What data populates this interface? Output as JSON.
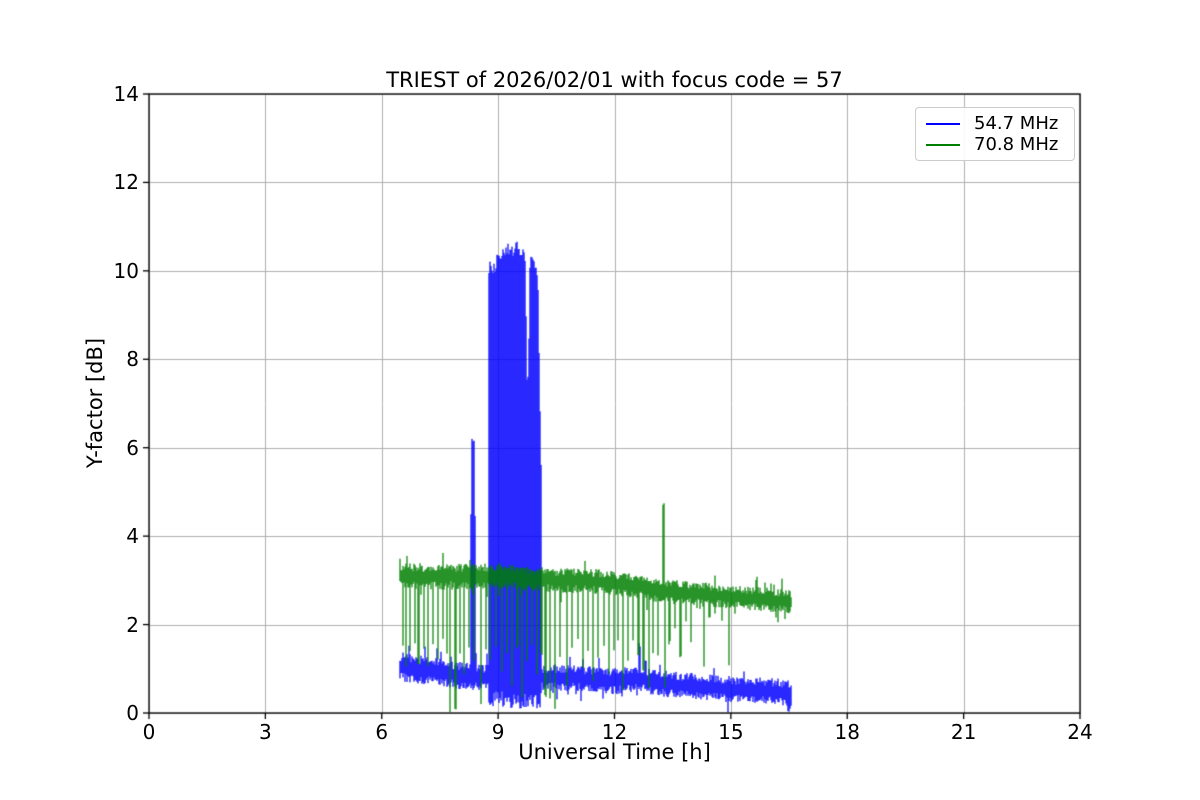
{
  "chart_data": {
    "type": "line",
    "title": "TRIEST of 2026/02/01 with focus code = 57",
    "xlabel": "Universal Time [h]",
    "ylabel": "Y-factor [dB]",
    "xlim": [
      0,
      24
    ],
    "ylim": [
      0,
      14
    ],
    "xticks": [
      0,
      3,
      6,
      9,
      12,
      15,
      18,
      21,
      24
    ],
    "yticks": [
      0,
      2,
      4,
      6,
      8,
      10,
      12,
      14
    ],
    "grid": true,
    "grid_color": "#b0b0b0",
    "axis_color": "#000000",
    "background_color": "#ffffff",
    "legend": {
      "position": "top-right",
      "entries": [
        {
          "label": "54.7 MHz",
          "color": "#0000ff"
        },
        {
          "label": "70.8 MHz",
          "color": "#008000"
        }
      ]
    },
    "time_range": [
      6.47,
      16.57
    ],
    "spike_halfwidth": 0.016,
    "series": [
      {
        "name": "54.7 MHz",
        "color": "#0000ff",
        "baseline": [
          [
            6.47,
            1.05
          ],
          [
            7.0,
            0.98
          ],
          [
            7.6,
            0.9
          ],
          [
            8.3,
            0.82
          ],
          [
            8.74,
            0.8
          ],
          [
            10.12,
            0.8
          ],
          [
            10.85,
            0.8
          ],
          [
            11.5,
            0.75
          ],
          [
            12.0,
            0.72
          ],
          [
            12.65,
            0.78
          ],
          [
            13.0,
            0.68
          ],
          [
            13.8,
            0.62
          ],
          [
            14.5,
            0.58
          ],
          [
            15.2,
            0.52
          ],
          [
            16.0,
            0.5
          ],
          [
            16.57,
            0.45
          ]
        ],
        "noise_amp": [
          [
            6.47,
            0.33
          ],
          [
            8.74,
            0.3
          ],
          [
            10.12,
            0.3
          ],
          [
            16.57,
            0.3
          ]
        ],
        "spikes_up": [
          [
            8.35,
            6.2,
            0.03
          ],
          [
            8.35,
            4.5,
            0.06
          ],
          [
            10.85,
            1.35,
            0.02
          ],
          [
            11.6,
            1.3,
            0.02
          ],
          [
            12.65,
            1.6,
            0.02
          ]
        ],
        "spikes_down": [
          [
            16.5,
            0.03,
            0.03
          ]
        ],
        "burst": {
          "start": 8.74,
          "end": 10.12,
          "bottom": 0.28,
          "top_envelope": [
            [
              8.74,
              10.0
            ],
            [
              8.8,
              10.15
            ],
            [
              8.9,
              10.05
            ],
            [
              9.0,
              10.3
            ],
            [
              9.1,
              10.4
            ],
            [
              9.22,
              10.5
            ],
            [
              9.35,
              10.45
            ],
            [
              9.5,
              10.55
            ],
            [
              9.6,
              10.45
            ],
            [
              9.7,
              10.3
            ],
            [
              9.74,
              7.6
            ],
            [
              9.78,
              7.5
            ],
            [
              9.82,
              10.2
            ],
            [
              9.9,
              10.35
            ],
            [
              9.97,
              10.1
            ],
            [
              10.02,
              9.9
            ],
            [
              10.07,
              7.3
            ],
            [
              10.12,
              4.8
            ]
          ]
        }
      },
      {
        "name": "70.8 MHz",
        "color": "#008000",
        "baseline": [
          [
            6.47,
            3.1
          ],
          [
            7.5,
            3.08
          ],
          [
            9.0,
            3.1
          ],
          [
            9.6,
            3.05
          ],
          [
            10.5,
            3.0
          ],
          [
            11.5,
            2.98
          ],
          [
            12.0,
            2.93
          ],
          [
            12.6,
            2.86
          ],
          [
            13.2,
            2.76
          ],
          [
            14.0,
            2.7
          ],
          [
            15.0,
            2.63
          ],
          [
            16.0,
            2.56
          ],
          [
            16.56,
            2.5
          ]
        ],
        "noise_amp": [
          [
            6.47,
            0.3
          ],
          [
            10.0,
            0.28
          ],
          [
            16.56,
            0.27
          ]
        ],
        "spikes_up": [
          [
            13.26,
            4.78,
            0.018
          ]
        ],
        "spikes_down": [
          [
            6.55,
            1.5
          ],
          [
            6.63,
            1.0
          ],
          [
            6.72,
            1.35
          ],
          [
            6.85,
            1.5
          ],
          [
            6.95,
            1.1
          ],
          [
            7.08,
            1.45
          ],
          [
            7.2,
            1.0
          ],
          [
            7.32,
            1.5
          ],
          [
            7.45,
            1.2
          ],
          [
            7.58,
            1.6
          ],
          [
            7.68,
            1.3
          ],
          [
            7.76,
            0.02
          ],
          [
            7.9,
            0.05
          ],
          [
            8.02,
            1.3
          ],
          [
            8.12,
            0.8
          ],
          [
            8.25,
            1.45
          ],
          [
            8.38,
            1.1
          ],
          [
            8.55,
            0.15
          ],
          [
            8.68,
            1.4
          ],
          [
            8.8,
            1.2
          ],
          [
            8.95,
            1.5
          ],
          [
            9.1,
            0.9
          ],
          [
            9.22,
            1.3
          ],
          [
            9.35,
            0.6
          ],
          [
            9.5,
            1.45
          ],
          [
            9.62,
            0.35
          ],
          [
            9.75,
            1.1
          ],
          [
            9.88,
            1.5
          ],
          [
            10.0,
            0.8
          ],
          [
            10.12,
            1.3
          ],
          [
            10.22,
            0.35
          ],
          [
            10.33,
            0.3
          ],
          [
            10.46,
            0.05
          ],
          [
            10.6,
            1.2
          ],
          [
            10.77,
            0.6
          ],
          [
            10.9,
            1.45
          ],
          [
            11.05,
            1.6
          ],
          [
            11.18,
            0.95
          ],
          [
            11.32,
            1.4
          ],
          [
            11.45,
            0.65
          ],
          [
            11.58,
            1.25
          ],
          [
            11.72,
            1.5
          ],
          [
            11.85,
            0.85
          ],
          [
            11.98,
            1.4
          ],
          [
            12.1,
            1.6
          ],
          [
            12.22,
            0.5
          ],
          [
            12.35,
            1.15
          ],
          [
            12.48,
            1.6
          ],
          [
            12.62,
            1.25
          ],
          [
            12.75,
            0.95
          ],
          [
            12.88,
            0.55
          ],
          [
            13.0,
            1.35
          ],
          [
            13.12,
            1.3
          ],
          [
            13.3,
            0.55
          ],
          [
            13.42,
            1.55
          ],
          [
            13.56,
            1.9
          ],
          [
            13.7,
            1.25
          ],
          [
            13.84,
            2.0
          ],
          [
            13.98,
            1.55
          ],
          [
            14.12,
            2.3
          ],
          [
            14.3,
            1.0
          ],
          [
            14.45,
            2.1
          ],
          [
            14.6,
            2.2
          ],
          [
            14.78,
            2.05
          ],
          [
            14.95,
            1.0
          ],
          [
            15.1,
            2.2
          ]
        ]
      }
    ]
  }
}
